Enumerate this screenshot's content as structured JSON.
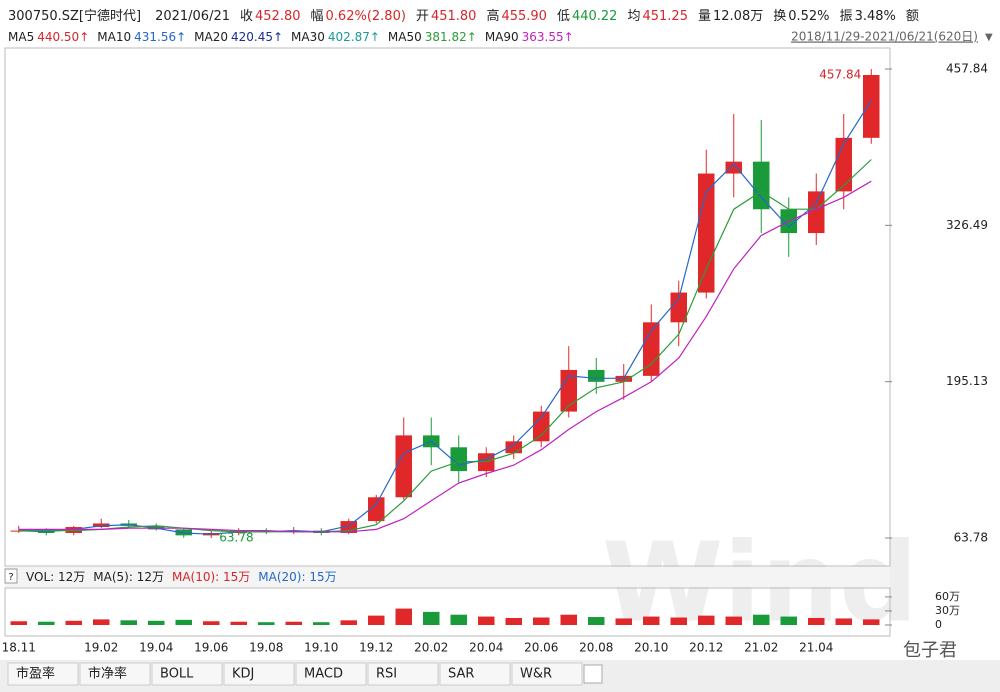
{
  "header": {
    "code": "300750.SZ[宁德时代]",
    "date": "2021/06/21",
    "fields": [
      {
        "label": "收",
        "value": "452.80",
        "color": "#d7262b"
      },
      {
        "label": "幅",
        "value": "0.62%(2.80)",
        "color": "#d7262b"
      },
      {
        "label": "开",
        "value": "451.80",
        "color": "#d7262b"
      },
      {
        "label": "高",
        "value": "455.90",
        "color": "#d7262b"
      },
      {
        "label": "低",
        "value": "440.22",
        "color": "#1a9b3a"
      },
      {
        "label": "均",
        "value": "451.25",
        "color": "#d7262b"
      },
      {
        "label": "量",
        "value": "12.08万",
        "color": "#222222"
      },
      {
        "label": "换",
        "value": "0.52%",
        "color": "#222222"
      },
      {
        "label": "振",
        "value": "3.48%",
        "color": "#222222"
      },
      {
        "label": "额"
      }
    ]
  },
  "ma_row": {
    "items": [
      {
        "label": "MA5",
        "value": "440.50↑",
        "color": "#d7262b"
      },
      {
        "label": "MA10",
        "value": "431.56↑",
        "color": "#2468c8"
      },
      {
        "label": "MA20",
        "value": "420.45↑",
        "color": "#1c2f8f"
      },
      {
        "label": "MA30",
        "value": "402.87↑",
        "color": "#1a9a9a"
      },
      {
        "label": "MA50",
        "value": "381.82↑",
        "color": "#2a9c3a"
      },
      {
        "label": "MA90",
        "value": "363.55↑",
        "color": "#c020c0"
      }
    ],
    "range": "2018/11/29-2021/06/21(620日)"
  },
  "chart_data": {
    "type": "candlestick",
    "categories": [
      "18.11",
      null,
      null,
      "19.02",
      null,
      "19.04",
      null,
      "19.06",
      null,
      "19.08",
      null,
      "19.10",
      null,
      "19.12",
      null,
      "20.02",
      null,
      "20.04",
      null,
      "20.06",
      null,
      "20.08",
      null,
      "20.10",
      null,
      "20.12",
      null,
      "21.02",
      null,
      "21.04",
      null,
      null
    ],
    "open": [
      70,
      70,
      68,
      73,
      76,
      74,
      71,
      66,
      68,
      70,
      69,
      70,
      68,
      78,
      98,
      150,
      140,
      120,
      135,
      145,
      170,
      205,
      195,
      200,
      245,
      270,
      370,
      380,
      340,
      320,
      355,
      400
    ],
    "high": [
      74,
      72,
      74,
      80,
      79,
      76,
      72,
      70,
      72,
      72,
      73,
      72,
      80,
      100,
      165,
      165,
      150,
      140,
      150,
      175,
      225,
      215,
      210,
      260,
      280,
      390,
      420,
      415,
      350,
      370,
      420,
      457.84
    ],
    "low": [
      68,
      66,
      66,
      72,
      72,
      70,
      64,
      63.78,
      66,
      67,
      67,
      66,
      67,
      76,
      96,
      125,
      110,
      115,
      130,
      140,
      165,
      185,
      180,
      195,
      225,
      265,
      350,
      320,
      300,
      310,
      340,
      395
    ],
    "close": [
      70,
      68,
      73,
      76,
      74,
      71,
      66,
      68,
      70,
      69,
      70,
      68,
      78,
      98,
      150,
      140,
      120,
      135,
      145,
      170,
      205,
      195,
      200,
      245,
      270,
      370,
      380,
      340,
      320,
      355,
      400,
      452.8
    ],
    "up_color": "#e0282b",
    "down_color": "#1a9b3a",
    "series": [
      {
        "name": "MA10",
        "color": "#2468c8",
        "values": [
          70,
          69,
          71,
          74,
          75,
          72,
          68,
          67,
          69,
          69,
          70,
          69,
          74,
          92,
          135,
          145,
          125,
          130,
          142,
          165,
          200,
          198,
          198,
          238,
          265,
          355,
          378,
          350,
          325,
          345,
          395,
          431.56
        ]
      },
      {
        "name": "MA50",
        "color": "#2a9c3a",
        "values": [
          70,
          70,
          70,
          71,
          73,
          74,
          72,
          70,
          69,
          69,
          69,
          69,
          70,
          75,
          95,
          120,
          128,
          128,
          135,
          150,
          175,
          190,
          195,
          210,
          235,
          290,
          340,
          355,
          340,
          340,
          360,
          381.82
        ]
      },
      {
        "name": "MA90",
        "color": "#c020c0",
        "values": [
          71,
          71,
          71,
          71,
          72,
          72,
          72,
          71,
          70,
          70,
          69,
          69,
          69,
          71,
          80,
          95,
          110,
          118,
          125,
          138,
          155,
          170,
          182,
          195,
          215,
          250,
          290,
          318,
          330,
          340,
          350,
          363.55
        ]
      }
    ],
    "ylim": [
      41.1,
      473.8
    ],
    "yticks": [
      63.78,
      195.13,
      326.49,
      457.84
    ],
    "max_marker": 457.84,
    "min_marker": 63.78,
    "volume": {
      "values": [
        8,
        7,
        9,
        12,
        10,
        9,
        11,
        8,
        7,
        6,
        7,
        6,
        10,
        20,
        35,
        28,
        22,
        18,
        15,
        16,
        22,
        17,
        14,
        18,
        16,
        20,
        18,
        22,
        18,
        15,
        14,
        12
      ],
      "ylim": [
        0,
        79
      ],
      "yticks": [
        {
          "value": 60,
          "label": "60万"
        },
        {
          "value": 30,
          "label": "30万"
        },
        0
      ]
    }
  },
  "volume_row": [
    "VOL: 12万",
    "MA(5): 12万",
    "MA(10): 15万",
    "MA(20): 15万"
  ],
  "tabs": [
    "市盈率",
    "市净率",
    "BOLL",
    "KDJ",
    "MACD",
    "RSI",
    "SAR",
    "W&R"
  ],
  "watermark": "Wind",
  "credit": "包子君"
}
